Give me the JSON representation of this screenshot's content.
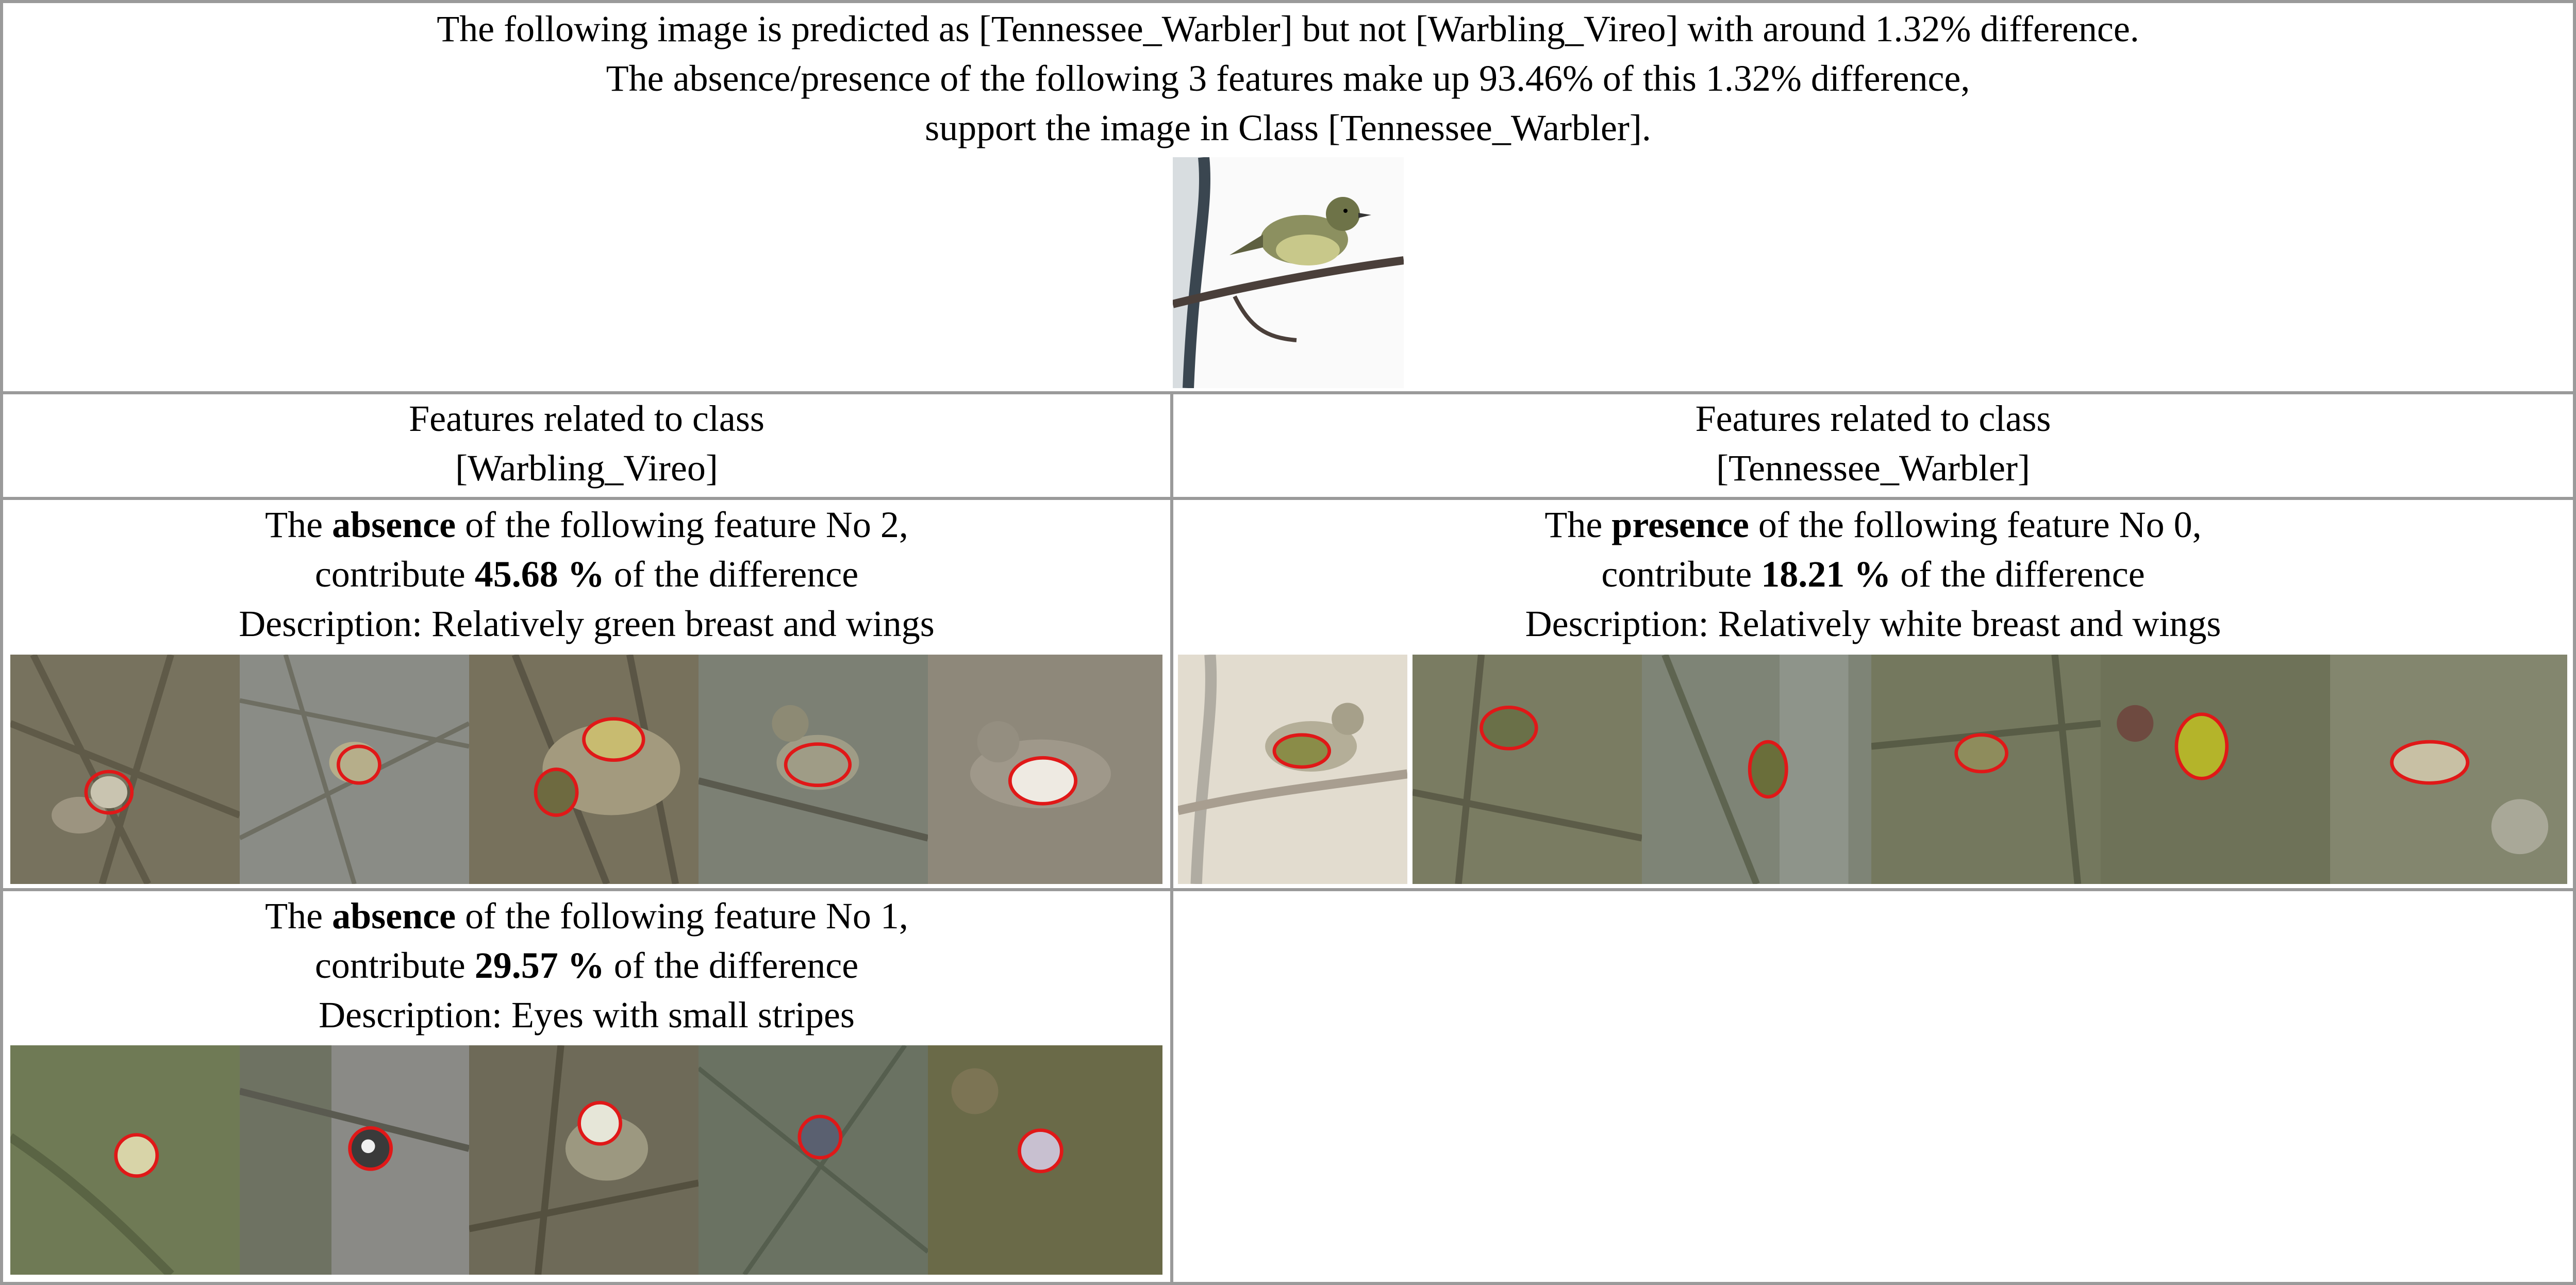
{
  "header": {
    "line1": "The following image is predicted as [Tennessee_Warbler] but not [Warbling_Vireo] with around 1.32% difference.",
    "line2": "The absence/presence of the following 3 features make up 93.46% of this 1.32% difference,",
    "line3": "support the image in Class [Tennessee_Warbler]."
  },
  "columns": {
    "left": {
      "line1": "Features related to class",
      "line2": "[Warbling_Vireo]"
    },
    "right": {
      "line1": "Features related to class",
      "line2": "[Tennessee_Warbler]"
    }
  },
  "features": [
    {
      "prefix": "The ",
      "kind": "absence",
      "mid": " of the following feature No 2,",
      "contrib_prefix": "contribute ",
      "percent": "45.68 %",
      "contrib_suffix": " of the difference",
      "description": "Description: Relatively green breast and wings"
    },
    {
      "prefix": "The ",
      "kind": "presence",
      "mid": " of the following feature No 0,",
      "contrib_prefix": "contribute ",
      "percent": "18.21 %",
      "contrib_suffix": " of the difference",
      "description": "Description: Relatively white breast and wings"
    },
    {
      "prefix": "The ",
      "kind": "absence",
      "mid": " of the following feature No 1,",
      "contrib_prefix": "contribute ",
      "percent": "29.57 %",
      "contrib_suffix": " of the difference",
      "description": "Description: Eyes with small stripes"
    }
  ],
  "colors": {
    "grid": "#9a9a9a",
    "outline": "#e01818"
  }
}
